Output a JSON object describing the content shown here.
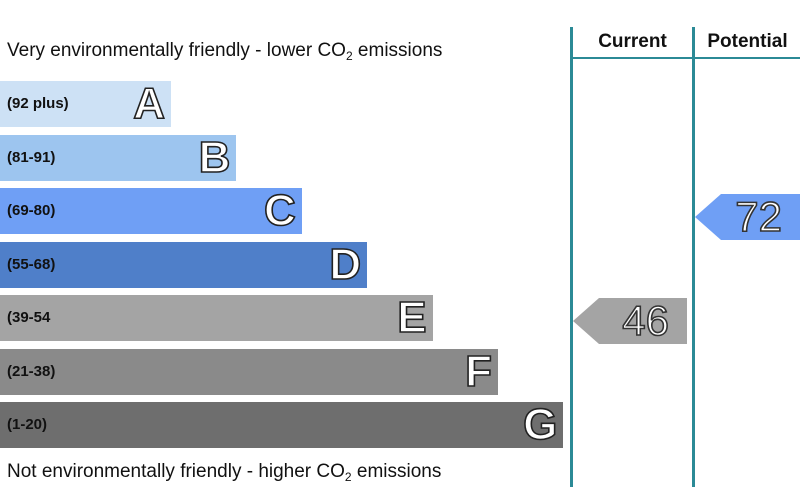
{
  "chart_data": {
    "type": "bar",
    "caption_top": {
      "text": "Very environmentally friendly - lower CO",
      "sub": "2",
      "tail": " emissions"
    },
    "caption_bottom": {
      "text": "Not environmentally friendly - higher CO",
      "sub": "2",
      "tail": " emissions"
    },
    "bands": [
      {
        "letter": "A",
        "range": "(92 plus)",
        "color": "#cde1f5"
      },
      {
        "letter": "B",
        "range": "(81-91)",
        "color": "#9dc5ef"
      },
      {
        "letter": "C",
        "range": "(69-80)",
        "color": "#6f9ff5"
      },
      {
        "letter": "D",
        "range": "(55-68)",
        "color": "#4f7fc9"
      },
      {
        "letter": "E",
        "range": "(39-54",
        "color": "#a4a4a4"
      },
      {
        "letter": "F",
        "range": "(21-38)",
        "color": "#8a8a8a"
      },
      {
        "letter": "G",
        "range": "(1-20)",
        "color": "#6e6e6e"
      }
    ],
    "columns": {
      "current": "Current",
      "potential": "Potential"
    },
    "current": {
      "value": 46,
      "band": "E",
      "color": "#a4a4a4"
    },
    "potential": {
      "value": 72,
      "band": "C",
      "color": "#6f9ff5"
    }
  }
}
